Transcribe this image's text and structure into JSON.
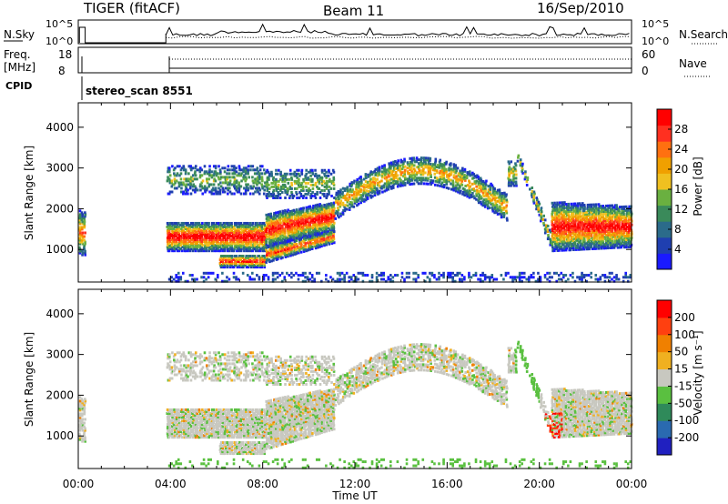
{
  "header": {
    "radar": "TIGER (fitACF)",
    "beam": "Beam 11",
    "date": "16/Sep/2010"
  },
  "top_panels": {
    "nsky_label": "N.Sky",
    "nsky_ticks": [
      "10^5",
      "10^0"
    ],
    "nsearch_label": "N.Search",
    "nsearch_ticks": [
      "10^5",
      "10^0"
    ],
    "freq_label": "Freq.",
    "freq_unit": "[MHz]",
    "freq_ticks": [
      "18",
      "8"
    ],
    "nave_label": "Nave",
    "nave_ticks": [
      "60",
      "0"
    ],
    "cpid_label": "CPID",
    "cpid_value": "stereo_scan 8551"
  },
  "chart_data": [
    {
      "type": "heatmap",
      "name": "power",
      "ylabel": "Slant Range [km]",
      "xlabel": "Time UT",
      "x_ticks": [
        "00:00",
        "04:00",
        "08:00",
        "12:00",
        "16:00",
        "20:00",
        "00:00"
      ],
      "x_tick_hours": [
        0,
        4,
        8,
        12,
        16,
        20,
        24
      ],
      "xlim": [
        0,
        24
      ],
      "y_ticks": [
        1000,
        2000,
        3000,
        4000
      ],
      "ylim": [
        200,
        4600
      ],
      "colorbar": {
        "label": "Power [dB]",
        "ticks": [
          "28",
          "24",
          "20",
          "16",
          "12",
          "8",
          "4"
        ],
        "colors": [
          "#1a1aff",
          "#1f3fb0",
          "#2b6b8a",
          "#3a8a5a",
          "#6ab040",
          "#f0c020",
          "#f0a000",
          "#ff7010",
          "#ff3020",
          "#ff0000"
        ]
      }
    },
    {
      "type": "heatmap",
      "name": "velocity",
      "ylabel": "Slant Range [km]",
      "xlabel": "Time UT",
      "x_ticks": [
        "00:00",
        "04:00",
        "08:00",
        "12:00",
        "16:00",
        "20:00",
        "00:00"
      ],
      "x_tick_hours": [
        0,
        4,
        8,
        12,
        16,
        20,
        24
      ],
      "xlim": [
        0,
        24
      ],
      "y_ticks": [
        1000,
        2000,
        3000,
        4000
      ],
      "ylim": [
        200,
        4600
      ],
      "colorbar": {
        "label": "Velocity [m s⁻¹]",
        "ticks": [
          "200",
          "100",
          "50",
          "15",
          "-15",
          "-50",
          "-100",
          "-200"
        ],
        "colors": [
          "#2020c0",
          "#2a6ab0",
          "#2f8a5a",
          "#5ac040",
          "#c8c8c0",
          "#f0b020",
          "#f08000",
          "#ff4010",
          "#ff0000"
        ]
      }
    }
  ],
  "xlabel": "Time UT"
}
